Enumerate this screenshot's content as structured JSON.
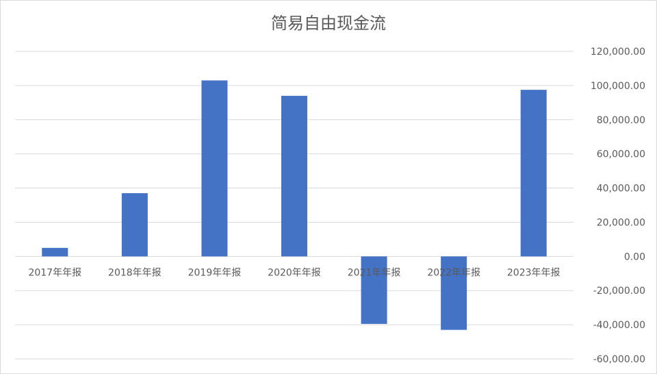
{
  "chart_data": {
    "type": "bar",
    "title": "简易自由现金流",
    "categories": [
      "2017年年报",
      "2018年年报",
      "2019年年报",
      "2020年年报",
      "2021年年报",
      "2022年年报",
      "2023年年报"
    ],
    "series": [
      {
        "values": [
          5000,
          37000,
          103000,
          94000,
          -39500,
          -43000,
          97500
        ]
      }
    ],
    "ylim": [
      -60000,
      120000
    ],
    "yticks": [
      120000,
      100000,
      80000,
      60000,
      40000,
      20000,
      0,
      -20000,
      -40000,
      -60000
    ],
    "ytick_labels": [
      "120,000.00",
      "100,000.00",
      "80,000.00",
      "60,000.00",
      "40,000.00",
      "20,000.00",
      "0.00",
      "-20,000.00",
      "-40,000.00",
      "-60,000.00"
    ],
    "y_axis_position": "right",
    "grid": true,
    "bar_color": "#4472c4",
    "xlabel": "",
    "ylabel": ""
  }
}
